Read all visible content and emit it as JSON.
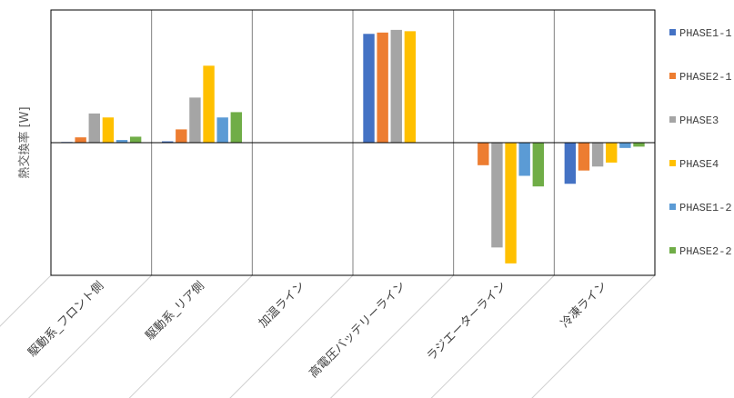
{
  "chart_data": {
    "type": "bar",
    "title": "",
    "xlabel": "",
    "ylabel": "熱交換率 [W]",
    "ylim": [
      -100,
      100
    ],
    "grid": false,
    "legend_position": "right",
    "categories": [
      "駆動系_フロント側",
      "駆動系_リア側",
      "加温ライン",
      "高電圧バッテリーライン",
      "ラジエーターライン",
      "冷凍ライン"
    ],
    "series": [
      {
        "name": "PHASE1-1",
        "color": "#4472C4",
        "values": [
          0.5,
          1,
          0,
          82,
          0,
          -31
        ]
      },
      {
        "name": "PHASE2-1",
        "color": "#ED7D31",
        "values": [
          4,
          10,
          0,
          83,
          -17,
          -21
        ]
      },
      {
        "name": "PHASE3",
        "color": "#A5A5A5",
        "values": [
          22,
          34,
          0,
          85,
          -79,
          -18
        ]
      },
      {
        "name": "PHASE4",
        "color": "#FFC000",
        "values": [
          19,
          58,
          0,
          84,
          -91,
          -15
        ]
      },
      {
        "name": "PHASE1-2",
        "color": "#5B9BD5",
        "values": [
          2,
          19,
          0,
          0,
          -25,
          -4
        ]
      },
      {
        "name": "PHASE2-2",
        "color": "#70AD47",
        "values": [
          4.5,
          23,
          0,
          0,
          -33,
          -3
        ]
      }
    ]
  }
}
